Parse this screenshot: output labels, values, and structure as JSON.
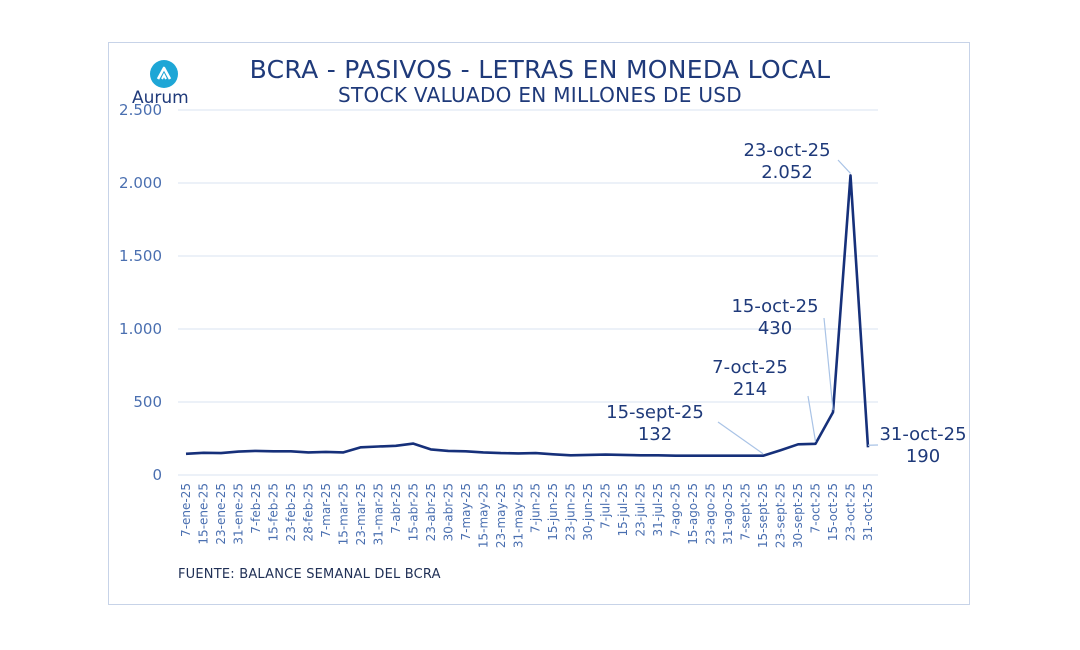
{
  "chart_data": {
    "type": "line",
    "title": "BCRA - PASIVOS - LETRAS EN MONEDA LOCAL",
    "subtitle": "STOCK VALUADO EN MILLONES DE USD",
    "source": "FUENTE: BALANCE SEMANAL DEL BCRA",
    "brand": "Aurum",
    "xlabel": "",
    "ylabel": "",
    "ylim": [
      0,
      2500
    ],
    "yticks": [
      0,
      500,
      1000,
      1500,
      2000,
      2500
    ],
    "ytick_labels": [
      "0",
      "500",
      "1.000",
      "1.500",
      "2.000",
      "2.500"
    ],
    "grid": true,
    "line_color": "#16307a",
    "categories": [
      "7-ene-25",
      "15-ene-25",
      "23-ene-25",
      "31-ene-25",
      "7-feb-25",
      "15-feb-25",
      "23-feb-25",
      "28-feb-25",
      "7-mar-25",
      "15-mar-25",
      "23-mar-25",
      "31-mar-25",
      "7-abr-25",
      "15-abr-25",
      "23-abr-25",
      "30-abr-25",
      "7-may-25",
      "15-may-25",
      "23-may-25",
      "31-may-25",
      "7-jun-25",
      "15-jun-25",
      "23-jun-25",
      "30-jun-25",
      "7-jul-25",
      "15-jul-25",
      "23-jul-25",
      "31-jul-25",
      "7-ago-25",
      "15-ago-25",
      "23-ago-25",
      "31-ago-25",
      "7-sept-25",
      "15-sept-25",
      "23-sept-25",
      "30-sept-25",
      "7-oct-25",
      "15-oct-25",
      "23-oct-25",
      "31-oct-25"
    ],
    "values": [
      145,
      152,
      150,
      160,
      165,
      162,
      162,
      155,
      158,
      155,
      190,
      195,
      200,
      215,
      175,
      165,
      162,
      155,
      150,
      148,
      150,
      142,
      135,
      138,
      140,
      138,
      135,
      135,
      132,
      132,
      132,
      132,
      132,
      132,
      170,
      210,
      214,
      430,
      2052,
      190
    ],
    "annotations": [
      {
        "category": "15-sept-25",
        "label": "15-sept-25",
        "value_label": "132"
      },
      {
        "category": "7-oct-25",
        "label": "7-oct-25",
        "value_label": "214"
      },
      {
        "category": "15-oct-25",
        "label": "15-oct-25",
        "value_label": "430"
      },
      {
        "category": "23-oct-25",
        "label": "23-oct-25",
        "value_label": "2.052"
      },
      {
        "category": "31-oct-25",
        "label": "31-oct-25",
        "value_label": "190"
      }
    ]
  }
}
